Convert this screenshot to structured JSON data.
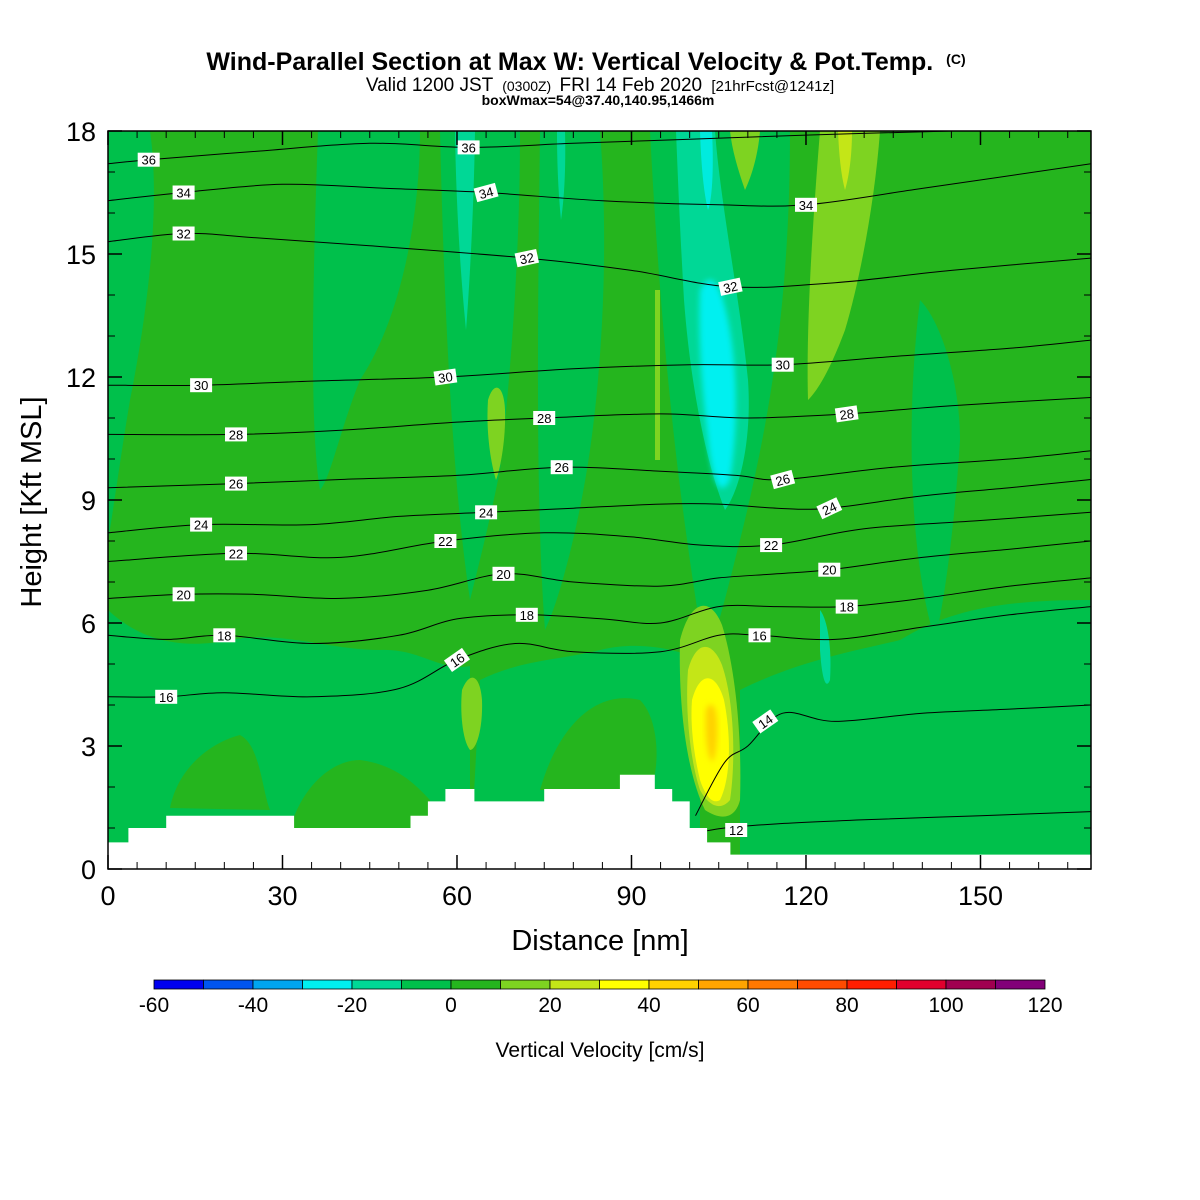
{
  "chart_data": {
    "type": "heatmap",
    "title": "Wind-Parallel Section at Max W: Vertical Velocity & Pot.Temp.",
    "title_mark": "(C)",
    "subtitle": {
      "prefix": "Valid 1200 JST",
      "utc": "(0300Z)",
      "date": "FRI 14 Feb 2020",
      "forecast": "[21hrFcst@1241z]"
    },
    "box_info": "boxWmax=54@37.40,140.95,1466m",
    "xlabel": "Distance [nm]",
    "ylabel": "Height [Kft MSL]",
    "xlim": [
      0,
      169
    ],
    "ylim": [
      0,
      18
    ],
    "x_ticks": [
      0,
      30,
      60,
      90,
      120,
      150
    ],
    "y_ticks": [
      0,
      3,
      6,
      9,
      12,
      15,
      18
    ],
    "grid": false,
    "colorbar": {
      "label": "Vertical Velocity [cm/s]",
      "placement": "bottom",
      "levels": [
        -60,
        -50,
        -40,
        -30,
        -20,
        -10,
        0,
        10,
        20,
        30,
        40,
        50,
        60,
        70,
        80,
        90,
        100,
        110,
        120
      ],
      "tick_labels": [
        "-60",
        "-40",
        "-20",
        "0",
        "20",
        "40",
        "60",
        "80",
        "100",
        "120"
      ],
      "colors": [
        "#0000f0",
        "#0055f0",
        "#00a5f0",
        "#00f0f0",
        "#00d896",
        "#00c04b",
        "#25b51e",
        "#7ed321",
        "#c4e617",
        "#ffff00",
        "#ffd200",
        "#ffa500",
        "#ff7800",
        "#ff4b00",
        "#ff1e00",
        "#e1002d",
        "#a00050",
        "#820078"
      ]
    },
    "features": [
      {
        "type": "updraft",
        "x": 104,
        "y": 3.5,
        "w_cm_s": 40
      },
      {
        "type": "downdraft",
        "x": 104,
        "y": 12,
        "w_cm_s": -20
      }
    ],
    "terrain": [
      [
        0,
        0.65
      ],
      [
        3.5,
        0.65
      ],
      [
        3.5,
        1.0
      ],
      [
        10,
        1.0
      ],
      [
        10,
        1.3
      ],
      [
        32,
        1.3
      ],
      [
        32,
        1.0
      ],
      [
        52,
        1.0
      ],
      [
        52,
        1.3
      ],
      [
        55,
        1.3
      ],
      [
        55,
        1.65
      ],
      [
        58,
        1.65
      ],
      [
        58,
        1.95
      ],
      [
        63,
        1.95
      ],
      [
        63,
        1.65
      ],
      [
        75,
        1.65
      ],
      [
        75,
        1.95
      ],
      [
        88,
        1.95
      ],
      [
        88,
        2.3
      ],
      [
        94,
        2.3
      ],
      [
        94,
        1.95
      ],
      [
        97,
        1.95
      ],
      [
        97,
        1.65
      ],
      [
        100,
        1.65
      ],
      [
        100,
        1.0
      ],
      [
        103,
        1.0
      ],
      [
        103,
        0.65
      ],
      [
        107,
        0.65
      ],
      [
        107,
        0.35
      ],
      [
        169,
        0.35
      ]
    ],
    "theta_contours": [
      {
        "label": "12",
        "pts": [
          [
            100,
            0.85
          ],
          [
            106,
            1.0
          ],
          [
            115,
            1.1
          ],
          [
            130,
            1.2
          ],
          [
            150,
            1.3
          ],
          [
            169,
            1.4
          ]
        ],
        "labels": [
          [
            108,
            0.95,
            0
          ]
        ]
      },
      {
        "label": "14",
        "pts": [
          [
            101,
            1.3
          ],
          [
            106,
            2.6
          ],
          [
            110,
            3.0
          ],
          [
            116,
            3.8
          ],
          [
            125,
            3.6
          ],
          [
            140,
            3.8
          ],
          [
            155,
            3.9
          ],
          [
            169,
            4.0
          ]
        ],
        "labels": [
          [
            113,
            3.6,
            -35
          ]
        ]
      },
      {
        "label": "16",
        "pts": [
          [
            0,
            4.2
          ],
          [
            10,
            4.2
          ],
          [
            20,
            4.3
          ],
          [
            35,
            4.2
          ],
          [
            50,
            4.4
          ],
          [
            60,
            5.1
          ],
          [
            70,
            5.5
          ],
          [
            80,
            5.3
          ],
          [
            95,
            5.3
          ],
          [
            105,
            5.7
          ],
          [
            112,
            5.7
          ],
          [
            125,
            5.6
          ],
          [
            140,
            5.9
          ],
          [
            155,
            6.2
          ],
          [
            169,
            6.4
          ]
        ],
        "labels": [
          [
            10,
            4.2,
            0
          ],
          [
            60,
            5.1,
            -35
          ],
          [
            112,
            5.7,
            0
          ]
        ]
      },
      {
        "label": "18",
        "pts": [
          [
            0,
            5.7
          ],
          [
            10,
            5.6
          ],
          [
            20,
            5.7
          ],
          [
            35,
            5.5
          ],
          [
            50,
            5.7
          ],
          [
            60,
            6.1
          ],
          [
            72,
            6.2
          ],
          [
            85,
            6.1
          ],
          [
            95,
            6.0
          ],
          [
            105,
            6.4
          ],
          [
            115,
            6.4
          ],
          [
            127,
            6.4
          ],
          [
            140,
            6.6
          ],
          [
            155,
            6.9
          ],
          [
            169,
            7.1
          ]
        ],
        "labels": [
          [
            20,
            5.7,
            0
          ],
          [
            72,
            6.2,
            0
          ],
          [
            127,
            6.4,
            0
          ]
        ]
      },
      {
        "label": "20",
        "pts": [
          [
            0,
            6.6
          ],
          [
            13,
            6.7
          ],
          [
            25,
            6.7
          ],
          [
            40,
            6.6
          ],
          [
            55,
            6.8
          ],
          [
            68,
            7.2
          ],
          [
            80,
            7.0
          ],
          [
            95,
            6.9
          ],
          [
            105,
            7.1
          ],
          [
            115,
            7.2
          ],
          [
            124,
            7.3
          ],
          [
            140,
            7.6
          ],
          [
            155,
            7.8
          ],
          [
            169,
            8.0
          ]
        ],
        "labels": [
          [
            13,
            6.7,
            0
          ],
          [
            68,
            7.2,
            0
          ],
          [
            124,
            7.3,
            0
          ]
        ]
      },
      {
        "label": "22",
        "pts": [
          [
            0,
            7.5
          ],
          [
            22,
            7.7
          ],
          [
            40,
            7.6
          ],
          [
            58,
            8.0
          ],
          [
            75,
            8.2
          ],
          [
            90,
            8.1
          ],
          [
            102,
            7.9
          ],
          [
            114,
            7.9
          ],
          [
            130,
            8.3
          ],
          [
            150,
            8.5
          ],
          [
            169,
            8.7
          ]
        ],
        "labels": [
          [
            22,
            7.7,
            0
          ],
          [
            58,
            8.0,
            0
          ],
          [
            114,
            7.9,
            0
          ]
        ]
      },
      {
        "label": "24",
        "pts": [
          [
            0,
            8.2
          ],
          [
            16,
            8.4
          ],
          [
            35,
            8.4
          ],
          [
            50,
            8.6
          ],
          [
            65,
            8.7
          ],
          [
            80,
            8.8
          ],
          [
            95,
            8.9
          ],
          [
            105,
            8.9
          ],
          [
            115,
            8.8
          ],
          [
            124,
            8.8
          ],
          [
            140,
            9.1
          ],
          [
            155,
            9.3
          ],
          [
            169,
            9.5
          ]
        ],
        "labels": [
          [
            16,
            8.4,
            0
          ],
          [
            65,
            8.7,
            0
          ],
          [
            124,
            8.8,
            -25
          ]
        ]
      },
      {
        "label": "26",
        "pts": [
          [
            0,
            9.3
          ],
          [
            22,
            9.4
          ],
          [
            40,
            9.5
          ],
          [
            60,
            9.6
          ],
          [
            78,
            9.8
          ],
          [
            95,
            9.7
          ],
          [
            108,
            9.6
          ],
          [
            116,
            9.5
          ],
          [
            135,
            9.8
          ],
          [
            155,
            10.0
          ],
          [
            169,
            10.2
          ]
        ],
        "labels": [
          [
            22,
            9.4,
            0
          ],
          [
            78,
            9.8,
            0
          ],
          [
            116,
            9.5,
            -15
          ]
        ]
      },
      {
        "label": "28",
        "pts": [
          [
            0,
            10.6
          ],
          [
            22,
            10.6
          ],
          [
            40,
            10.7
          ],
          [
            60,
            10.9
          ],
          [
            75,
            11.0
          ],
          [
            95,
            11.1
          ],
          [
            110,
            11.0
          ],
          [
            127,
            11.1
          ],
          [
            145,
            11.3
          ],
          [
            169,
            11.5
          ]
        ],
        "labels": [
          [
            22,
            10.6,
            0
          ],
          [
            75,
            11.0,
            0
          ],
          [
            127,
            11.1,
            -8
          ]
        ]
      },
      {
        "label": "30",
        "pts": [
          [
            0,
            11.8
          ],
          [
            16,
            11.8
          ],
          [
            35,
            11.9
          ],
          [
            58,
            12.0
          ],
          [
            80,
            12.2
          ],
          [
            100,
            12.3
          ],
          [
            116,
            12.3
          ],
          [
            135,
            12.5
          ],
          [
            155,
            12.7
          ],
          [
            169,
            12.9
          ]
        ],
        "labels": [
          [
            16,
            11.8,
            0
          ],
          [
            58,
            12.0,
            -8
          ],
          [
            116,
            12.3,
            0
          ]
        ]
      },
      {
        "label": "32",
        "pts": [
          [
            0,
            15.3
          ],
          [
            13,
            15.5
          ],
          [
            25,
            15.4
          ],
          [
            45,
            15.2
          ],
          [
            72,
            14.9
          ],
          [
            90,
            14.6
          ],
          [
            107,
            14.2
          ],
          [
            125,
            14.3
          ],
          [
            145,
            14.6
          ],
          [
            169,
            14.9
          ]
        ],
        "labels": [
          [
            13,
            15.5,
            0
          ],
          [
            72,
            14.9,
            -12
          ],
          [
            107,
            14.2,
            -12
          ]
        ]
      },
      {
        "label": "34",
        "pts": [
          [
            0,
            16.3
          ],
          [
            13,
            16.5
          ],
          [
            30,
            16.7
          ],
          [
            48,
            16.6
          ],
          [
            65,
            16.5
          ],
          [
            85,
            16.3
          ],
          [
            105,
            16.2
          ],
          [
            120,
            16.2
          ],
          [
            140,
            16.6
          ],
          [
            169,
            17.2
          ]
        ],
        "labels": [
          [
            13,
            16.5,
            0
          ],
          [
            65,
            16.5,
            -15
          ],
          [
            120,
            16.2,
            0
          ]
        ]
      },
      {
        "label": "36",
        "pts": [
          [
            0,
            17.2
          ],
          [
            7,
            17.3
          ],
          [
            25,
            17.5
          ],
          [
            45,
            17.7
          ],
          [
            62,
            17.6
          ],
          [
            80,
            17.7
          ],
          [
            100,
            17.8
          ],
          [
            120,
            17.9
          ],
          [
            145,
            18.0
          ]
        ],
        "labels": [
          [
            7,
            17.3,
            0
          ],
          [
            62,
            17.6,
            0
          ]
        ]
      }
    ]
  }
}
